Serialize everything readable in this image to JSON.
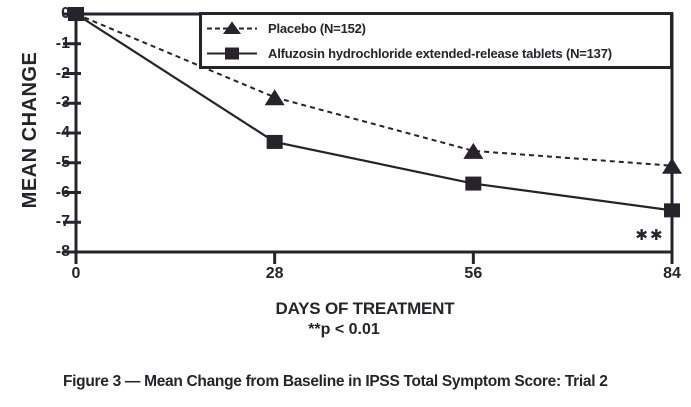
{
  "figure": {
    "caption": "Figure 3 — Mean Change from Baseline in IPSS Total Symptom Score: Trial 2"
  },
  "chart_data": {
    "type": "line",
    "title": "",
    "xlabel": "DAYS OF TREATMENT",
    "ylabel": "MEAN CHANGE",
    "x": [
      0,
      28,
      56,
      84
    ],
    "xlim": [
      0,
      84
    ],
    "ylim": [
      -8,
      0
    ],
    "xticks": [
      0,
      28,
      56,
      84
    ],
    "yticks": [
      0,
      -1,
      -2,
      -3,
      -4,
      -5,
      -6,
      -7,
      -8
    ],
    "grid": false,
    "frame": true,
    "legend_position": "top-right-inside",
    "series": [
      {
        "name": "Placebo (N=152)",
        "marker": "triangle",
        "line": "dashed",
        "values": [
          0,
          -2.8,
          -4.6,
          -5.1
        ]
      },
      {
        "name": "Alfuzosin hydrochloride extended-release tablets (N=137)",
        "marker": "square",
        "line": "solid",
        "values": [
          0,
          -4.3,
          -5.7,
          -6.6
        ]
      }
    ]
  },
  "annotations": {
    "significance_marker": "✱✱",
    "p_value_note": "**p < 0.01"
  },
  "colors": {
    "ink": "#26232b",
    "background": "#ffffff"
  }
}
